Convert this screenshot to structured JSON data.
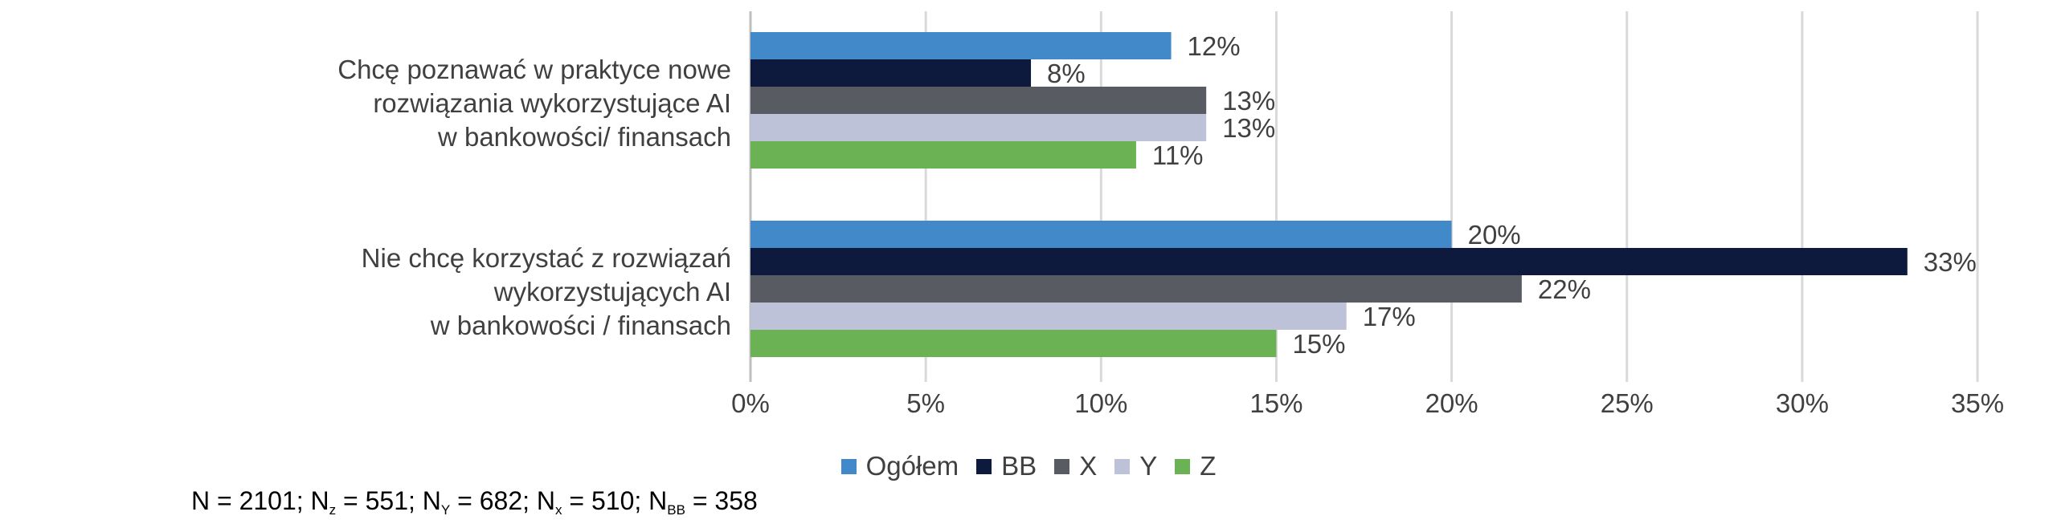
{
  "chart_data": {
    "type": "bar",
    "orientation": "horizontal",
    "categories": [
      "Chcę poznawać w praktyce nowe rozwiązania wykorzystujące AI w bankowości/ finansach",
      "Nie chcę korzystać z rozwiązań wykorzystujących AI w bankowości / finansach"
    ],
    "category_lines": [
      [
        "Chcę poznawać w praktyce nowe",
        "rozwiązania wykorzystujące AI",
        "w bankowości/ finansach"
      ],
      [
        "Nie chcę korzystać z rozwiązań",
        "wykorzystujących AI",
        "w bankowości / finansach"
      ]
    ],
    "series": [
      {
        "name": "Ogółem",
        "values": [
          12,
          20
        ],
        "color": "#4189C8"
      },
      {
        "name": "BB",
        "values": [
          8,
          33
        ],
        "color": "#0D1A3D"
      },
      {
        "name": "X",
        "values": [
          13,
          22
        ],
        "color": "#595B63"
      },
      {
        "name": "Y",
        "values": [
          13,
          17
        ],
        "color": "#BDC2D8"
      },
      {
        "name": "Z",
        "values": [
          11,
          15
        ],
        "color": "#6BB254"
      }
    ],
    "value_suffix": "%",
    "xlim": [
      0,
      35
    ],
    "xticks": [
      0,
      5,
      10,
      15,
      20,
      25,
      30,
      35
    ],
    "xtick_labels": [
      "0%",
      "5%",
      "10%",
      "15%",
      "20%",
      "25%",
      "30%",
      "35%"
    ],
    "grid": "vertical",
    "legend_position": "bottom",
    "title": "",
    "xlabel": "",
    "ylabel": ""
  },
  "footnote": {
    "parts": [
      {
        "text": "N = 2101; N"
      },
      {
        "sub": "z"
      },
      {
        "text": " = 551; N"
      },
      {
        "sub": "Y"
      },
      {
        "text": " = 682; N"
      },
      {
        "sub": "x"
      },
      {
        "text": " = 510; N"
      },
      {
        "sub": "BB"
      },
      {
        "text": " = 358"
      }
    ]
  }
}
